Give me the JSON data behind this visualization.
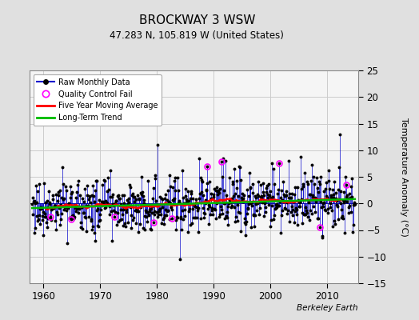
{
  "title": "BROCKWAY 3 WSW",
  "subtitle": "47.283 N, 105.819 W (United States)",
  "ylabel": "Temperature Anomaly (°C)",
  "watermark": "Berkeley Earth",
  "xlim": [
    1957.5,
    2015.5
  ],
  "ylim": [
    -15,
    25
  ],
  "yticks": [
    -15,
    -10,
    -5,
    0,
    5,
    10,
    15,
    20,
    25
  ],
  "xticks": [
    1960,
    1970,
    1980,
    1990,
    2000,
    2010
  ],
  "outer_bg": "#e0e0e0",
  "plot_bg": "#f5f5f5",
  "raw_color": "#0000cc",
  "ma_color": "#ff0000",
  "trend_color": "#00bb00",
  "qc_color": "#ff00ff",
  "grid_color": "#cccccc",
  "legend_items": [
    "Raw Monthly Data",
    "Quality Control Fail",
    "Five Year Moving Average",
    "Long-Term Trend"
  ]
}
